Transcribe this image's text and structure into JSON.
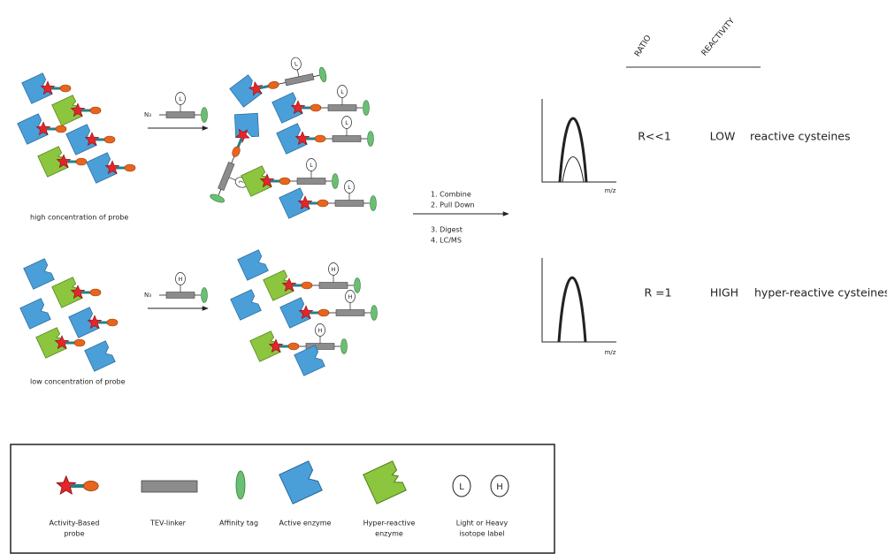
{
  "header": {
    "ratio": "RATIO",
    "reactivity": "REACTIVITY"
  },
  "rows": [
    {
      "ratio": "R<<1",
      "reactivity": "LOW",
      "description": "reactive cysteines"
    },
    {
      "ratio": "R =1",
      "reactivity": "HIGH",
      "description": "hyper-reactive cysteines"
    }
  ],
  "axis_label": "m/z",
  "steps": [
    "1. Combine",
    "2. Pull Down",
    "3. Digest",
    "4. LC/MS"
  ],
  "conditions": [
    "high concentration of probe",
    "low concentration of probe"
  ],
  "reagent": "N₃",
  "isotope": {
    "light": "L",
    "heavy": "H"
  },
  "legend": [
    {
      "label": [
        "Activity-Based",
        "probe"
      ]
    },
    {
      "label": [
        "TEV-linker"
      ]
    },
    {
      "label": [
        "Affinity tag"
      ]
    },
    {
      "label": [
        "Active enzyme"
      ]
    },
    {
      "label": [
        "Hyper-reactive",
        "enzyme"
      ]
    },
    {
      "label": [
        "Light or Heavy",
        "isotope label"
      ]
    }
  ]
}
